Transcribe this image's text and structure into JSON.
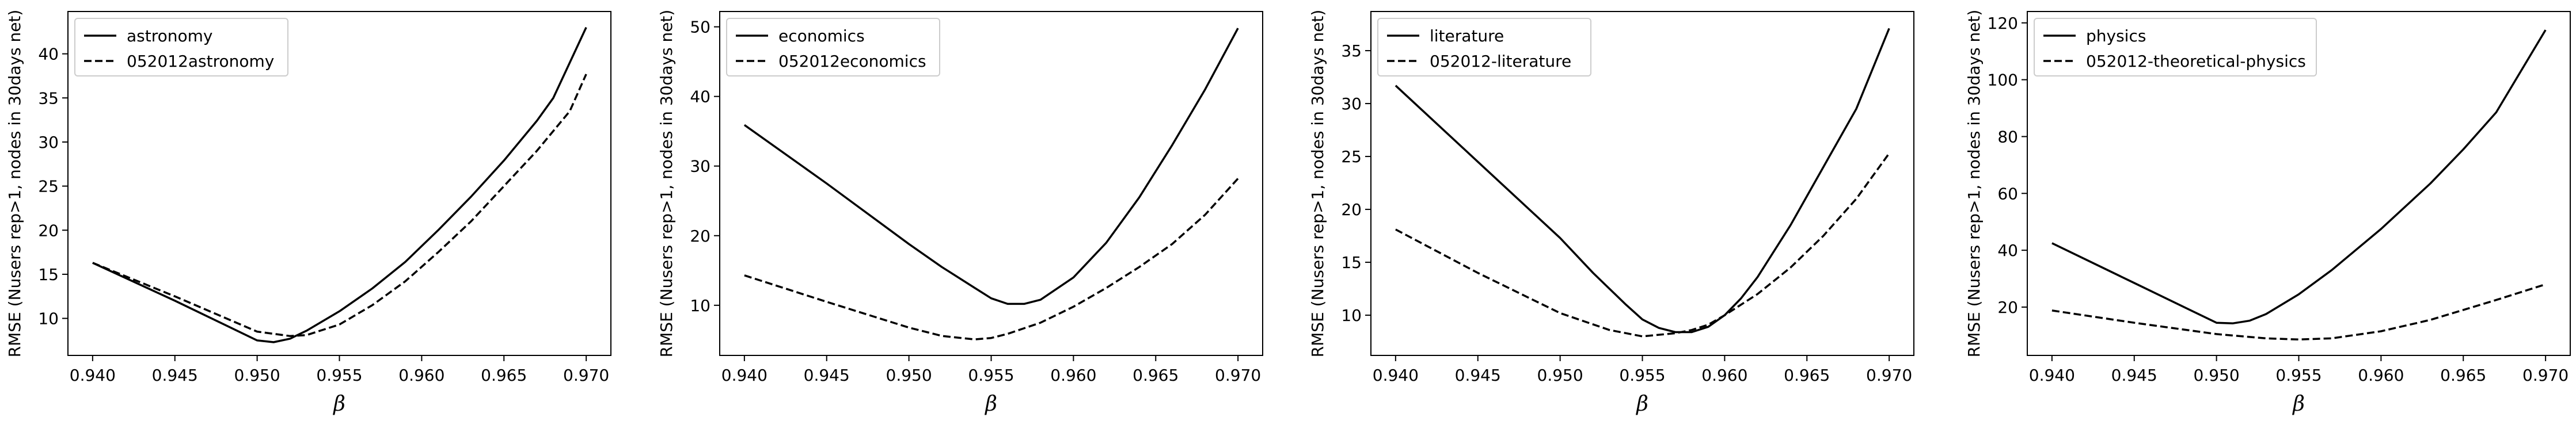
{
  "chart_data": [
    {
      "type": "line",
      "xlabel": "β",
      "ylabel": "RMSE (Nusers rep>1, nodes in 30days net)",
      "xlim": [
        0.9385,
        0.9715
      ],
      "ylim": [
        5.8,
        44.8
      ],
      "xticks": [
        0.94,
        0.945,
        0.95,
        0.955,
        0.96,
        0.965,
        0.97
      ],
      "xtick_labels": [
        "0.940",
        "0.945",
        "0.950",
        "0.955",
        "0.960",
        "0.965",
        "0.970"
      ],
      "yticks": [
        10,
        15,
        20,
        25,
        30,
        35,
        40
      ],
      "ytick_labels": [
        "10",
        "15",
        "20",
        "25",
        "30",
        "35",
        "40"
      ],
      "legend": "top-left",
      "series": [
        {
          "name": "astronomy",
          "style": "solid",
          "x": [
            0.94,
            0.945,
            0.95,
            0.951,
            0.952,
            0.953,
            0.955,
            0.957,
            0.959,
            0.961,
            0.963,
            0.965,
            0.967,
            0.968,
            0.97
          ],
          "y": [
            16.3,
            12.0,
            7.5,
            7.3,
            7.7,
            8.6,
            10.8,
            13.4,
            16.4,
            20.0,
            23.8,
            27.9,
            32.4,
            35.0,
            43.0
          ]
        },
        {
          "name": "052012astronomy",
          "style": "dashed",
          "x": [
            0.94,
            0.945,
            0.95,
            0.952,
            0.953,
            0.955,
            0.957,
            0.959,
            0.961,
            0.963,
            0.965,
            0.967,
            0.969,
            0.97
          ],
          "y": [
            16.3,
            12.5,
            8.5,
            8.0,
            8.1,
            9.3,
            11.5,
            14.2,
            17.5,
            21.0,
            25.0,
            29.0,
            33.5,
            37.7
          ]
        }
      ]
    },
    {
      "type": "line",
      "xlabel": "β",
      "ylabel": "RMSE (Nusers rep>1, nodes in 30days net)",
      "xlim": [
        0.9385,
        0.9715
      ],
      "ylim": [
        2.8,
        52.2
      ],
      "xticks": [
        0.94,
        0.945,
        0.95,
        0.955,
        0.96,
        0.965,
        0.97
      ],
      "xtick_labels": [
        "0.940",
        "0.945",
        "0.950",
        "0.955",
        "0.960",
        "0.965",
        "0.970"
      ],
      "yticks": [
        10,
        20,
        30,
        40,
        50
      ],
      "ytick_labels": [
        "10",
        "20",
        "30",
        "40",
        "50"
      ],
      "legend": "top-left",
      "series": [
        {
          "name": "economics",
          "style": "solid",
          "x": [
            0.94,
            0.945,
            0.95,
            0.952,
            0.954,
            0.955,
            0.956,
            0.957,
            0.958,
            0.96,
            0.962,
            0.964,
            0.966,
            0.968,
            0.97
          ],
          "y": [
            35.9,
            27.5,
            18.8,
            15.5,
            12.5,
            11.0,
            10.2,
            10.2,
            10.8,
            14.0,
            19.0,
            25.5,
            33.0,
            41.0,
            49.8
          ]
        },
        {
          "name": "052012economics",
          "style": "dashed",
          "x": [
            0.94,
            0.945,
            0.95,
            0.952,
            0.954,
            0.955,
            0.956,
            0.958,
            0.96,
            0.962,
            0.964,
            0.966,
            0.968,
            0.97
          ],
          "y": [
            14.3,
            10.5,
            6.8,
            5.6,
            5.1,
            5.3,
            5.9,
            7.5,
            9.8,
            12.5,
            15.5,
            18.8,
            23.0,
            28.2
          ]
        }
      ]
    },
    {
      "type": "line",
      "xlabel": "β",
      "ylabel": "RMSE (Nusers rep>1, nodes in 30days net)",
      "xlim": [
        0.9385,
        0.9715
      ],
      "ylim": [
        6.2,
        38.7
      ],
      "xticks": [
        0.94,
        0.945,
        0.95,
        0.955,
        0.96,
        0.965,
        0.97
      ],
      "xtick_labels": [
        "0.940",
        "0.945",
        "0.950",
        "0.955",
        "0.960",
        "0.965",
        "0.970"
      ],
      "yticks": [
        10,
        15,
        20,
        25,
        30,
        35
      ],
      "ytick_labels": [
        "10",
        "15",
        "20",
        "25",
        "30",
        "35"
      ],
      "legend": "top-left",
      "series": [
        {
          "name": "literature",
          "style": "solid",
          "x": [
            0.94,
            0.945,
            0.95,
            0.952,
            0.954,
            0.955,
            0.956,
            0.957,
            0.958,
            0.959,
            0.96,
            0.961,
            0.962,
            0.964,
            0.966,
            0.968,
            0.97
          ],
          "y": [
            31.7,
            24.5,
            17.3,
            14.0,
            11.0,
            9.6,
            8.8,
            8.4,
            8.4,
            8.9,
            10.0,
            11.6,
            13.6,
            18.5,
            24.0,
            29.5,
            37.1
          ]
        },
        {
          "name": "052012-literature",
          "style": "dashed",
          "x": [
            0.94,
            0.945,
            0.95,
            0.953,
            0.955,
            0.957,
            0.958,
            0.959,
            0.96,
            0.962,
            0.964,
            0.966,
            0.968,
            0.97
          ],
          "y": [
            18.1,
            14.0,
            10.2,
            8.6,
            8.0,
            8.3,
            8.6,
            9.1,
            10.0,
            12.0,
            14.5,
            17.5,
            21.0,
            25.3
          ]
        }
      ]
    },
    {
      "type": "line",
      "xlabel": "β",
      "ylabel": "RMSE (Nusers rep>1, nodes in 30days net)",
      "xlim": [
        0.9385,
        0.9715
      ],
      "ylim": [
        3.0,
        124.0
      ],
      "xticks": [
        0.94,
        0.945,
        0.95,
        0.955,
        0.96,
        0.965,
        0.97
      ],
      "xtick_labels": [
        "0.940",
        "0.945",
        "0.950",
        "0.955",
        "0.960",
        "0.965",
        "0.970"
      ],
      "yticks": [
        20,
        40,
        60,
        80,
        100,
        120
      ],
      "ytick_labels": [
        "20",
        "40",
        "60",
        "80",
        "100",
        "120"
      ],
      "legend": "top-left",
      "series": [
        {
          "name": "physics",
          "style": "solid",
          "x": [
            0.94,
            0.945,
            0.95,
            0.951,
            0.952,
            0.953,
            0.955,
            0.957,
            0.96,
            0.963,
            0.965,
            0.967,
            0.97
          ],
          "y": [
            42.5,
            28.5,
            14.5,
            14.3,
            15.2,
            17.5,
            24.5,
            33.0,
            47.5,
            63.5,
            75.5,
            88.5,
            117.5
          ]
        },
        {
          "name": "052012-theoretical-physics",
          "style": "dashed",
          "x": [
            0.94,
            0.945,
            0.95,
            0.953,
            0.955,
            0.957,
            0.96,
            0.963,
            0.965,
            0.967,
            0.97
          ],
          "y": [
            18.8,
            14.5,
            10.5,
            9.0,
            8.6,
            9.0,
            11.5,
            15.5,
            19.0,
            22.5,
            28.0
          ]
        }
      ]
    }
  ]
}
